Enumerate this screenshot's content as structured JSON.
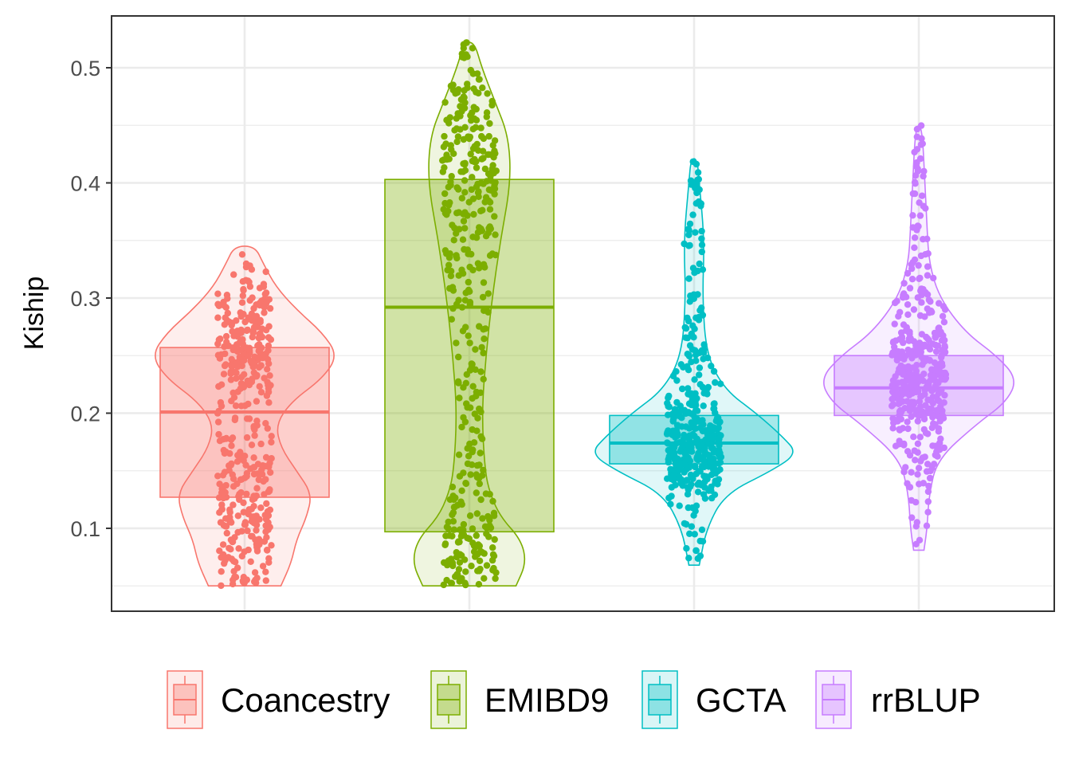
{
  "chart_data": {
    "type": "box",
    "title": "",
    "xlabel": "",
    "ylabel": "Kiship",
    "ylim": [
      0.028,
      0.545
    ],
    "y_ticks": [
      0.1,
      0.2,
      0.3,
      0.4,
      0.5
    ],
    "y_tick_labels": [
      "0.1",
      "0.2",
      "0.3",
      "0.4",
      "0.5"
    ],
    "grid": true,
    "legend_position": "bottom",
    "colors": {
      "Coancestry": "#F8766D",
      "EMIBD9": "#7CAE00",
      "GCTA": "#00BFC4",
      "rrBLUP": "#C77CFF"
    },
    "categories": [
      "Coancestry",
      "EMIBD9",
      "GCTA",
      "rrBLUP"
    ],
    "series": [
      {
        "name": "Coancestry",
        "box": {
          "min": 0.05,
          "q1": 0.127,
          "median": 0.201,
          "q3": 0.257,
          "max": 0.345
        },
        "violin": [
          [
            0.05,
            0.35
          ],
          [
            0.07,
            0.45
          ],
          [
            0.09,
            0.5
          ],
          [
            0.11,
            0.6
          ],
          [
            0.13,
            0.65
          ],
          [
            0.15,
            0.5
          ],
          [
            0.17,
            0.35
          ],
          [
            0.19,
            0.3
          ],
          [
            0.21,
            0.45
          ],
          [
            0.23,
            0.75
          ],
          [
            0.25,
            0.9
          ],
          [
            0.27,
            0.75
          ],
          [
            0.29,
            0.5
          ],
          [
            0.31,
            0.3
          ],
          [
            0.33,
            0.18
          ],
          [
            0.345,
            0.1
          ]
        ]
      },
      {
        "name": "EMIBD9",
        "box": {
          "min": 0.05,
          "q1": 0.097,
          "median": 0.292,
          "q3": 0.403,
          "max": 0.522
        },
        "violin": [
          [
            0.05,
            0.45
          ],
          [
            0.07,
            0.55
          ],
          [
            0.09,
            0.5
          ],
          [
            0.11,
            0.3
          ],
          [
            0.13,
            0.2
          ],
          [
            0.15,
            0.15
          ],
          [
            0.2,
            0.12
          ],
          [
            0.25,
            0.16
          ],
          [
            0.3,
            0.22
          ],
          [
            0.35,
            0.3
          ],
          [
            0.4,
            0.4
          ],
          [
            0.44,
            0.38
          ],
          [
            0.47,
            0.25
          ],
          [
            0.5,
            0.12
          ],
          [
            0.522,
            0.05
          ]
        ]
      },
      {
        "name": "GCTA",
        "box": {
          "min": 0.068,
          "q1": 0.156,
          "median": 0.174,
          "q3": 0.198,
          "max": 0.421
        },
        "violin": [
          [
            0.068,
            0.05
          ],
          [
            0.1,
            0.12
          ],
          [
            0.13,
            0.3
          ],
          [
            0.15,
            0.75
          ],
          [
            0.165,
            1.0
          ],
          [
            0.18,
            0.85
          ],
          [
            0.2,
            0.6
          ],
          [
            0.22,
            0.3
          ],
          [
            0.25,
            0.12
          ],
          [
            0.3,
            0.08
          ],
          [
            0.35,
            0.1
          ],
          [
            0.4,
            0.05
          ],
          [
            0.421,
            0.03
          ]
        ]
      },
      {
        "name": "rrBLUP",
        "box": {
          "min": 0.081,
          "q1": 0.198,
          "median": 0.222,
          "q3": 0.25,
          "max": 0.45
        },
        "violin": [
          [
            0.081,
            0.05
          ],
          [
            0.1,
            0.08
          ],
          [
            0.13,
            0.1
          ],
          [
            0.16,
            0.18
          ],
          [
            0.19,
            0.55
          ],
          [
            0.21,
            0.85
          ],
          [
            0.23,
            0.95
          ],
          [
            0.25,
            0.75
          ],
          [
            0.27,
            0.45
          ],
          [
            0.3,
            0.2
          ],
          [
            0.33,
            0.1
          ],
          [
            0.36,
            0.08
          ],
          [
            0.4,
            0.06
          ],
          [
            0.45,
            0.03
          ]
        ]
      }
    ]
  }
}
